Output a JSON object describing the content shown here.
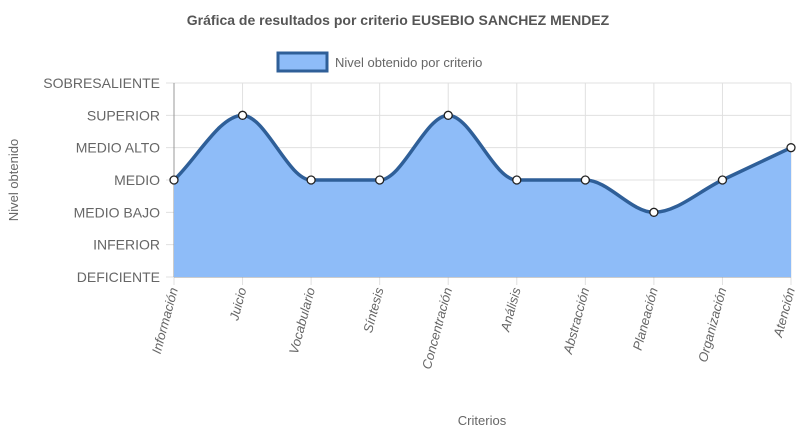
{
  "chart_data": {
    "type": "area",
    "title": "Gráfica de resultados por criterio EUSEBIO SANCHEZ MENDEZ",
    "xlabel": "Criterios",
    "ylabel": "Nivel obtenido",
    "categories": [
      "Información",
      "Juicio",
      "Vocabulario",
      "Síntesis",
      "Concentración",
      "Análisis",
      "Abstracción",
      "Planeación",
      "Organización",
      "Atención"
    ],
    "y_levels": [
      "DEFICIENTE",
      "INFERIOR",
      "MEDIO BAJO",
      "MEDIO",
      "MEDIO ALTO",
      "SUPERIOR",
      "SOBRESALIENTE"
    ],
    "ylim": [
      0,
      6
    ],
    "series": [
      {
        "name": "Nivel obtenido por criterio",
        "values": [
          3,
          5,
          3,
          3,
          5,
          3,
          3,
          2,
          3,
          4
        ],
        "color": "#2f5f98",
        "fill": "#8ebcf8"
      }
    ],
    "legend": "top",
    "grid": true
  }
}
